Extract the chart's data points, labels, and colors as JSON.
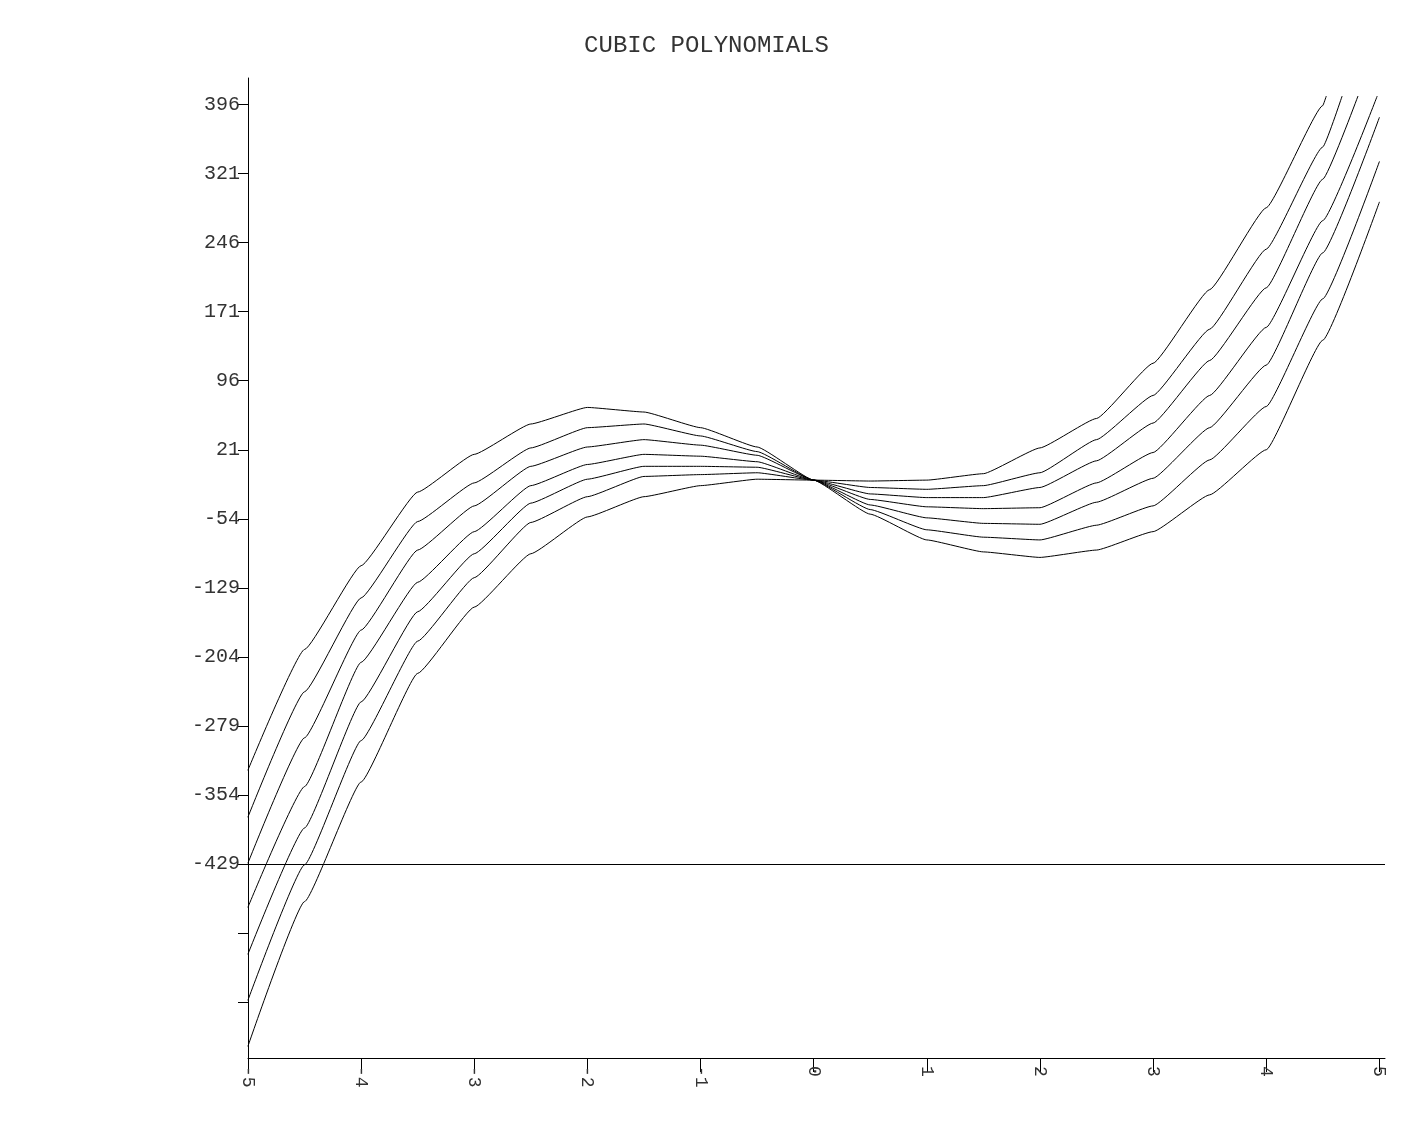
{
  "chart_data": {
    "type": "line",
    "title": "CUBIC POLYNOMIALS",
    "marker": "none",
    "line_style": "solid",
    "grid": false,
    "xlim": [
      -5,
      5.05
    ],
    "xticks": [
      -5,
      -4,
      -3,
      -2,
      -1,
      0,
      1,
      2,
      3,
      4,
      5
    ],
    "ylim": [
      -640,
      425
    ],
    "yticks": [
      {
        "value": -579,
        "label": null
      },
      {
        "value": -504,
        "label": null
      },
      -429,
      -354,
      -279,
      -204,
      -129,
      -54,
      21,
      96,
      171,
      246,
      321,
      396
    ],
    "ref_lines": [
      {
        "axis": "y",
        "value": -429,
        "color": "#000000",
        "line_style": "solid"
      }
    ],
    "series": [
      {
        "color": "#000000",
        "x": [
          -5,
          -4.5,
          -4,
          -3.5,
          -3,
          -2.5,
          -2,
          -1.5,
          -1,
          -0.5,
          0,
          0.5,
          1,
          1.5,
          2,
          2.5,
          3,
          3.5,
          4,
          4.5,
          4.53
        ],
        "values": [
          -327,
          -196,
          -105,
          -25,
          16,
          49,
          67,
          62,
          45,
          24,
          -12,
          -13,
          -12,
          -5,
          23,
          55,
          115,
          195,
          284,
          395,
          405
        ]
      },
      {
        "color": "#000000",
        "x": [
          -5,
          -4.5,
          -4,
          -3.5,
          -3,
          -2.5,
          -2,
          -1.5,
          -1,
          -0.5,
          0,
          0.5,
          1,
          1.5,
          2,
          2.5,
          3,
          3.5,
          4,
          4.5,
          4.67
        ],
        "values": [
          -378,
          -242,
          -140,
          -57,
          -15,
          23,
          45,
          49,
          36,
          19,
          -12,
          -20,
          -22,
          -18,
          -4,
          32,
          80,
          152,
          239,
          350,
          405
        ]
      },
      {
        "color": "#000000",
        "x": [
          -5,
          -4.5,
          -4,
          -3.5,
          -3,
          -2.5,
          -2,
          -1.5,
          -1,
          -0.5,
          0,
          0.5,
          1,
          1.5,
          2,
          2.5,
          3,
          3.5,
          4,
          4.5,
          4.81
        ],
        "values": [
          -428,
          -292,
          -175,
          -88,
          -40,
          3,
          24,
          32,
          26,
          15,
          -12,
          -27,
          -31,
          -31,
          -20,
          9,
          50,
          118,
          197,
          315,
          405
        ]
      },
      {
        "color": "#000000",
        "x": [
          -5,
          -4.5,
          -4,
          -3.5,
          -3,
          -2.5,
          -2,
          -1.5,
          -1,
          -0.5,
          0,
          0.5,
          1,
          1.5,
          2,
          2.5,
          3,
          3.5,
          4,
          4.5,
          4.98
        ],
        "values": [
          -476,
          -345,
          -210,
          -123,
          -68,
          -18,
          5,
          16,
          14,
          8,
          -12,
          -33,
          -41,
          -43,
          -42,
          -15,
          18,
          80,
          154,
          270,
          405
        ]
      },
      {
        "color": "#000000",
        "x": [
          -5,
          -4.5,
          -4,
          -3.5,
          -3,
          -2.5,
          -2,
          -1.5,
          -1,
          -0.5,
          0,
          0.5,
          1,
          1.5,
          2,
          2.5,
          3,
          3.5,
          4,
          4.5,
          5
        ],
        "values": [
          -527,
          -390,
          -253,
          -155,
          -92,
          -37,
          -11,
          3,
          3,
          2,
          -12,
          -39,
          -53,
          -59,
          -60,
          -36,
          -10,
          45,
          113,
          235,
          382
        ]
      },
      {
        "color": "#000000",
        "x": [
          -5,
          -4.5,
          -4,
          -3.5,
          -3,
          -2.5,
          -2,
          -1.5,
          -1,
          -0.5,
          0,
          0.5,
          1,
          1.5,
          2,
          2.5,
          3,
          3.5,
          4,
          4.5,
          5
        ],
        "values": [
          -577,
          -430,
          -295,
          -187,
          -118,
          -58,
          -30,
          -8,
          -6,
          -4,
          -12,
          -44,
          -66,
          -74,
          -77,
          -61,
          -40,
          10,
          68,
          185,
          334
        ]
      },
      {
        "color": "#000000",
        "x": [
          -5,
          -4.5,
          -4,
          -3.5,
          -3,
          -2.5,
          -2,
          -1.5,
          -1,
          -0.5,
          0,
          0.5,
          1,
          1.5,
          2,
          2.5,
          3,
          3.5,
          4,
          4.5,
          5
        ],
        "values": [
          -627,
          -470,
          -340,
          -222,
          -150,
          -92,
          -52,
          -30,
          -18,
          -11,
          -12,
          -49,
          -77,
          -90,
          -96,
          -88,
          -68,
          -28,
          21,
          140,
          290
        ]
      }
    ]
  }
}
